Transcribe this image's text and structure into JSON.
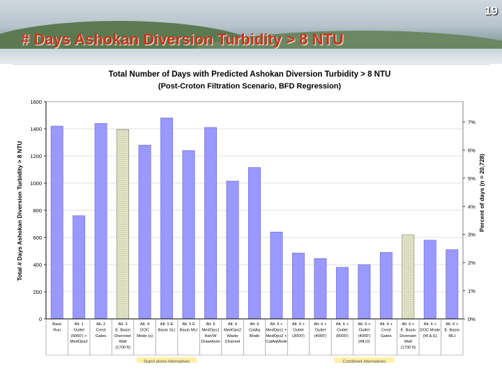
{
  "slide": {
    "title": "# Days Ashokan Diversion Turbidity > 8 NTU",
    "page_number": "19"
  },
  "chart_data": {
    "type": "bar",
    "title": "Total Number of Days with Predicted Ashokan Diversion Turbidity > 8 NTU",
    "subtitle": "(Post-Croton Filtration Scenario, BFD Regression)",
    "ylabel": "Total # Days Ashokan Diversion Turbidity > 8 NTU",
    "y2label": "Percent of days (n = 20,728)",
    "ylim": [
      0,
      1600
    ],
    "yticks": [
      0,
      200,
      400,
      600,
      800,
      1000,
      1200,
      1400,
      1600
    ],
    "y2ticks": [
      "0%",
      "1%",
      "2%",
      "3%",
      "4%",
      "5%",
      "6%",
      "7%"
    ],
    "categories": [
      [
        "Base",
        "Run"
      ],
      [
        "Alt. 1",
        "Outlet",
        "(6000') +",
        "MedOps2"
      ],
      [
        "Alt. 2",
        "Crest",
        "Gates"
      ],
      [
        "Alt. 3",
        "E. Basin",
        "Diversion",
        "Wall",
        "(1700 ft)"
      ],
      [
        "Alt. 4",
        "DOC",
        "Mode (s)"
      ],
      [
        "Alt. 5 E",
        "Basin SLI"
      ],
      [
        "Alt. 5 E",
        "Basin MLI"
      ],
      [
        "Alt. 6",
        "MedOps1",
        "Ash/W",
        "Drawdown"
      ],
      [
        "Alt. 6",
        "MedOps2",
        "Waste",
        "Channel"
      ],
      [
        "Alt. 6",
        "CatAq",
        "Mode"
      ],
      [
        "Alt. 6 +",
        "MedOps1 +",
        "MedOps2 +",
        "CatAqMode"
      ],
      [
        "Alt. 6 +",
        "Outlet",
        "(3000')"
      ],
      [
        "Alt. 6 +",
        "Outlet",
        "(4000')"
      ],
      [
        "Alt. 6 +",
        "Outlet",
        "(6000')"
      ],
      [
        "Alt. 6 +",
        "Outlet",
        "(4000')",
        "(MLO)"
      ],
      [
        "Alt. 6 +",
        "Crest",
        "Gates"
      ],
      [
        "Alt. 6 +",
        "E. Basin",
        "Diversion",
        "Wall",
        "(1700 ft)"
      ],
      [
        "Alt. 6 +",
        "DOC Mode",
        "(W & E)"
      ],
      [
        "Alt. 6 +",
        "E. Basin",
        "MLI"
      ]
    ],
    "values": [
      1420,
      760,
      1440,
      1395,
      1280,
      1480,
      1240,
      1410,
      1015,
      1115,
      640,
      485,
      445,
      380,
      400,
      490,
      620,
      580,
      510
    ],
    "hatched": [
      false,
      false,
      false,
      true,
      false,
      false,
      false,
      false,
      false,
      false,
      false,
      false,
      false,
      false,
      false,
      false,
      true,
      false,
      false
    ],
    "group_labels": [
      "Stand alone Alternatives",
      "Combined Alternatives"
    ],
    "colors": {
      "bar": "#9999ff",
      "bar_hatched": "#e6e8cc",
      "plot_bg": "#ffffff",
      "grid": "#c0c0c0",
      "group_label_bg": "#fff2a8"
    }
  }
}
